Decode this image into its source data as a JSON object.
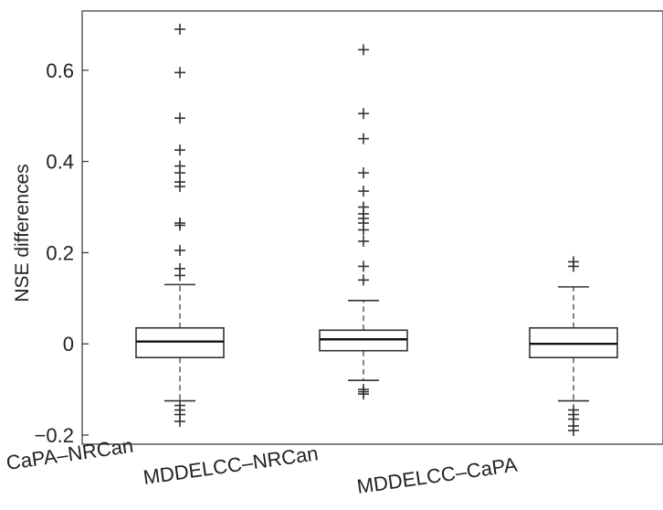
{
  "chart_data": {
    "type": "box",
    "ylabel": "NSE differences",
    "xlabel": "",
    "title": "",
    "ylim": [
      -0.22,
      0.73
    ],
    "yticks": [
      -0.2,
      0,
      0.2,
      0.4,
      0.6
    ],
    "ytick_labels": [
      "−0.2",
      "0",
      "0.2",
      "0.4",
      "0.6"
    ],
    "categories": [
      "CaPA–NRCan",
      "MDDELCC–NRCan",
      "MDDELCC–CaPA"
    ],
    "boxes": [
      {
        "name": "CaPA–NRCan",
        "whisker_low": -0.125,
        "q1": -0.03,
        "median": 0.005,
        "q3": 0.035,
        "whisker_high": 0.13,
        "outliers": [
          0.69,
          0.595,
          0.495,
          0.425,
          0.39,
          0.375,
          0.355,
          0.345,
          0.265,
          0.26,
          0.205,
          0.165,
          0.15,
          -0.135,
          -0.145,
          -0.155,
          -0.17
        ]
      },
      {
        "name": "MDDELCC–NRCan",
        "whisker_low": -0.08,
        "q1": -0.015,
        "median": 0.01,
        "q3": 0.03,
        "whisker_high": 0.095,
        "outliers": [
          0.645,
          0.505,
          0.45,
          0.375,
          0.335,
          0.3,
          0.285,
          0.275,
          0.265,
          0.25,
          0.225,
          0.17,
          0.14,
          -0.1,
          -0.105,
          -0.11
        ]
      },
      {
        "name": "MDDELCC–CaPA",
        "whisker_low": -0.125,
        "q1": -0.03,
        "median": 0.0,
        "q3": 0.035,
        "whisker_high": 0.125,
        "outliers": [
          0.18,
          0.17,
          -0.145,
          -0.155,
          -0.165,
          -0.18,
          -0.19
        ]
      }
    ]
  }
}
